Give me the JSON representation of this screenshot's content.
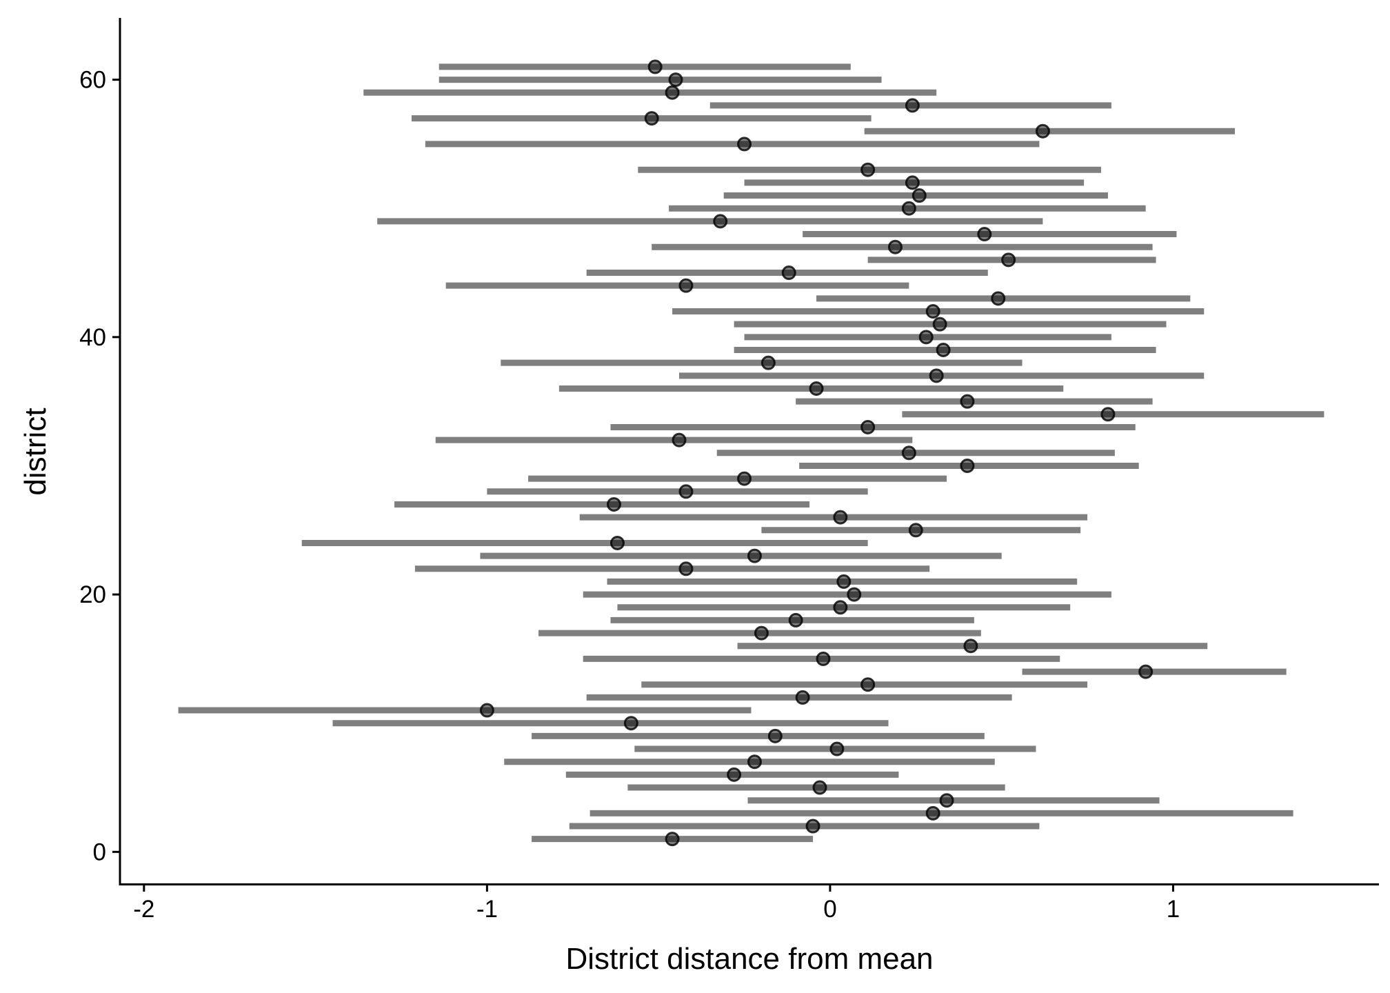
{
  "chart_data": {
    "type": "scatter",
    "subtype": "point-range",
    "title": "",
    "xlabel": "District distance from mean",
    "ylabel": "district",
    "xlim": [
      -2.07,
      1.6
    ],
    "ylim": [
      -2.5,
      64.8
    ],
    "xticks": [
      -2,
      -1,
      0,
      1
    ],
    "xtick_labels": [
      "-2",
      "-1",
      "0",
      "1"
    ],
    "yticks": [
      0,
      20,
      40,
      60
    ],
    "ytick_labels": [
      "0",
      "20",
      "40",
      "60"
    ],
    "grid": false,
    "legend": "none",
    "series": [
      {
        "points": [
          {
            "district": 1,
            "estimate": -0.46,
            "lower": -0.87,
            "upper": -0.05
          },
          {
            "district": 2,
            "estimate": -0.05,
            "lower": -0.76,
            "upper": 0.61
          },
          {
            "district": 3,
            "estimate": 0.3,
            "lower": -0.7,
            "upper": 1.35
          },
          {
            "district": 4,
            "estimate": 0.34,
            "lower": -0.24,
            "upper": 0.96
          },
          {
            "district": 5,
            "estimate": -0.03,
            "lower": -0.59,
            "upper": 0.51
          },
          {
            "district": 6,
            "estimate": -0.28,
            "lower": -0.77,
            "upper": 0.2
          },
          {
            "district": 7,
            "estimate": -0.22,
            "lower": -0.95,
            "upper": 0.48
          },
          {
            "district": 8,
            "estimate": 0.02,
            "lower": -0.57,
            "upper": 0.6
          },
          {
            "district": 9,
            "estimate": -0.16,
            "lower": -0.87,
            "upper": 0.45
          },
          {
            "district": 10,
            "estimate": -0.58,
            "lower": -1.45,
            "upper": 0.17
          },
          {
            "district": 11,
            "estimate": -1.0,
            "lower": -1.9,
            "upper": -0.23
          },
          {
            "district": 12,
            "estimate": -0.08,
            "lower": -0.71,
            "upper": 0.53
          },
          {
            "district": 13,
            "estimate": 0.11,
            "lower": -0.55,
            "upper": 0.75
          },
          {
            "district": 14,
            "estimate": 0.92,
            "lower": 0.56,
            "upper": 1.33
          },
          {
            "district": 15,
            "estimate": -0.02,
            "lower": -0.72,
            "upper": 0.67
          },
          {
            "district": 16,
            "estimate": 0.41,
            "lower": -0.27,
            "upper": 1.1
          },
          {
            "district": 17,
            "estimate": -0.2,
            "lower": -0.85,
            "upper": 0.44
          },
          {
            "district": 18,
            "estimate": -0.1,
            "lower": -0.64,
            "upper": 0.42
          },
          {
            "district": 19,
            "estimate": 0.03,
            "lower": -0.62,
            "upper": 0.7
          },
          {
            "district": 20,
            "estimate": 0.07,
            "lower": -0.72,
            "upper": 0.82
          },
          {
            "district": 21,
            "estimate": 0.04,
            "lower": -0.65,
            "upper": 0.72
          },
          {
            "district": 22,
            "estimate": -0.42,
            "lower": -1.21,
            "upper": 0.29
          },
          {
            "district": 23,
            "estimate": -0.22,
            "lower": -1.02,
            "upper": 0.5
          },
          {
            "district": 24,
            "estimate": -0.62,
            "lower": -1.54,
            "upper": 0.11
          },
          {
            "district": 25,
            "estimate": 0.25,
            "lower": -0.2,
            "upper": 0.73
          },
          {
            "district": 26,
            "estimate": 0.03,
            "lower": -0.73,
            "upper": 0.75
          },
          {
            "district": 27,
            "estimate": -0.63,
            "lower": -1.27,
            "upper": -0.06
          },
          {
            "district": 28,
            "estimate": -0.42,
            "lower": -1.0,
            "upper": 0.11
          },
          {
            "district": 29,
            "estimate": -0.25,
            "lower": -0.88,
            "upper": 0.34
          },
          {
            "district": 30,
            "estimate": 0.4,
            "lower": -0.09,
            "upper": 0.9
          },
          {
            "district": 31,
            "estimate": 0.23,
            "lower": -0.33,
            "upper": 0.83
          },
          {
            "district": 32,
            "estimate": -0.44,
            "lower": -1.15,
            "upper": 0.24
          },
          {
            "district": 33,
            "estimate": 0.11,
            "lower": -0.64,
            "upper": 0.89
          },
          {
            "district": 34,
            "estimate": 0.81,
            "lower": 0.21,
            "upper": 1.44
          },
          {
            "district": 35,
            "estimate": 0.4,
            "lower": -0.1,
            "upper": 0.94
          },
          {
            "district": 36,
            "estimate": -0.04,
            "lower": -0.79,
            "upper": 0.68
          },
          {
            "district": 37,
            "estimate": 0.31,
            "lower": -0.44,
            "upper": 1.09
          },
          {
            "district": 38,
            "estimate": -0.18,
            "lower": -0.96,
            "upper": 0.56
          },
          {
            "district": 39,
            "estimate": 0.33,
            "lower": -0.28,
            "upper": 0.95
          },
          {
            "district": 40,
            "estimate": 0.28,
            "lower": -0.25,
            "upper": 0.82
          },
          {
            "district": 41,
            "estimate": 0.32,
            "lower": -0.28,
            "upper": 0.98
          },
          {
            "district": 42,
            "estimate": 0.3,
            "lower": -0.46,
            "upper": 1.09
          },
          {
            "district": 43,
            "estimate": 0.49,
            "lower": -0.04,
            "upper": 1.05
          },
          {
            "district": 44,
            "estimate": -0.42,
            "lower": -1.12,
            "upper": 0.23
          },
          {
            "district": 45,
            "estimate": -0.12,
            "lower": -0.71,
            "upper": 0.46
          },
          {
            "district": 46,
            "estimate": 0.52,
            "lower": 0.11,
            "upper": 0.95
          },
          {
            "district": 47,
            "estimate": 0.19,
            "lower": -0.52,
            "upper": 0.94
          },
          {
            "district": 48,
            "estimate": 0.45,
            "lower": -0.08,
            "upper": 1.01
          },
          {
            "district": 49,
            "estimate": -0.32,
            "lower": -1.32,
            "upper": 0.62
          },
          {
            "district": 50,
            "estimate": 0.23,
            "lower": -0.47,
            "upper": 0.92
          },
          {
            "district": 51,
            "estimate": 0.26,
            "lower": -0.31,
            "upper": 0.81
          },
          {
            "district": 52,
            "estimate": 0.24,
            "lower": -0.25,
            "upper": 0.74
          },
          {
            "district": 53,
            "estimate": 0.11,
            "lower": -0.56,
            "upper": 0.79
          },
          {
            "district": 55,
            "estimate": -0.25,
            "lower": -1.18,
            "upper": 0.61
          },
          {
            "district": 56,
            "estimate": 0.62,
            "lower": 0.1,
            "upper": 1.18
          },
          {
            "district": 57,
            "estimate": -0.52,
            "lower": -1.22,
            "upper": 0.12
          },
          {
            "district": 58,
            "estimate": 0.24,
            "lower": -0.35,
            "upper": 0.82
          },
          {
            "district": 59,
            "estimate": -0.46,
            "lower": -1.36,
            "upper": 0.31
          },
          {
            "district": 60,
            "estimate": -0.45,
            "lower": -1.14,
            "upper": 0.15
          },
          {
            "district": 61,
            "estimate": -0.51,
            "lower": -1.14,
            "upper": 0.06
          }
        ]
      }
    ]
  }
}
